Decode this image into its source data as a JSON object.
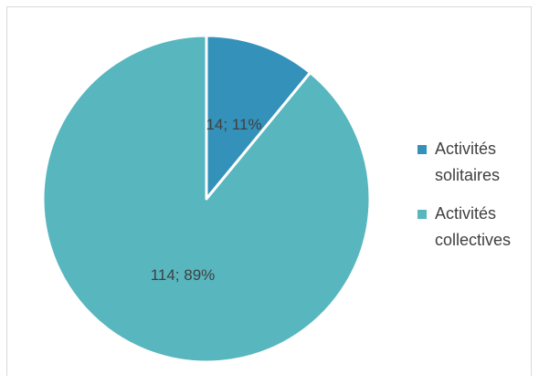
{
  "chart_data": {
    "type": "pie",
    "title": "",
    "categories": [
      "Activités solitaires",
      "Activités collectives"
    ],
    "values": [
      14,
      114
    ],
    "percentages": [
      11,
      89
    ],
    "data_labels": [
      "14; 11%",
      "114; 89%"
    ],
    "colors": [
      "#3391BA",
      "#58B6BF"
    ],
    "start_angle": "12 o'clock, clockwise",
    "legend_position": "right",
    "legend": [
      {
        "line1": "Activités",
        "line2": "solitaires",
        "color": "#3391BA"
      },
      {
        "line1": "Activités",
        "line2": "collectives",
        "color": "#58B6BF"
      }
    ]
  }
}
